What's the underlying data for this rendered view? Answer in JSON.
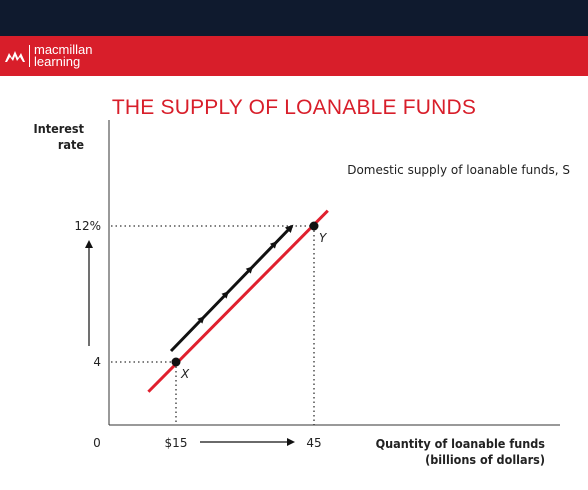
{
  "header": {
    "brand_line1": "macmillan",
    "brand_line2": "learning",
    "brand_icon": "macmillan-logo-icon",
    "colors": {
      "top_bar": "#0f1a2e",
      "brand_bar": "#d81e2a"
    }
  },
  "chart_data": {
    "type": "line",
    "title": "THE SUPPLY OF LOANABLE FUNDS",
    "ylabel_line1": "Interest",
    "ylabel_line2": "rate",
    "xlabel_line1": "Quantity of loanable funds",
    "xlabel_line2": "(billions of dollars)",
    "origin_label": "0",
    "x_ticks": [
      {
        "value": 15,
        "label": "$15"
      },
      {
        "value": 45,
        "label": "45"
      }
    ],
    "y_ticks": [
      {
        "value": 4,
        "label": "4"
      },
      {
        "value": 12,
        "label": "12%"
      }
    ],
    "series": [
      {
        "name": "Domestic supply of loanable funds, S",
        "color": "#e0202e",
        "x": [
          9,
          48
        ],
        "y": [
          2.25,
          12.9
        ]
      }
    ],
    "points": [
      {
        "label": "X",
        "x": 15,
        "y": 4
      },
      {
        "label": "Y",
        "x": 45,
        "y": 12
      }
    ],
    "movement_arrow": {
      "from": {
        "x": 15,
        "y": 4
      },
      "to": {
        "x": 45,
        "y": 12
      }
    },
    "xlim": [
      0,
      80
    ],
    "ylim": [
      -1.5,
      17
    ],
    "grid": false
  }
}
